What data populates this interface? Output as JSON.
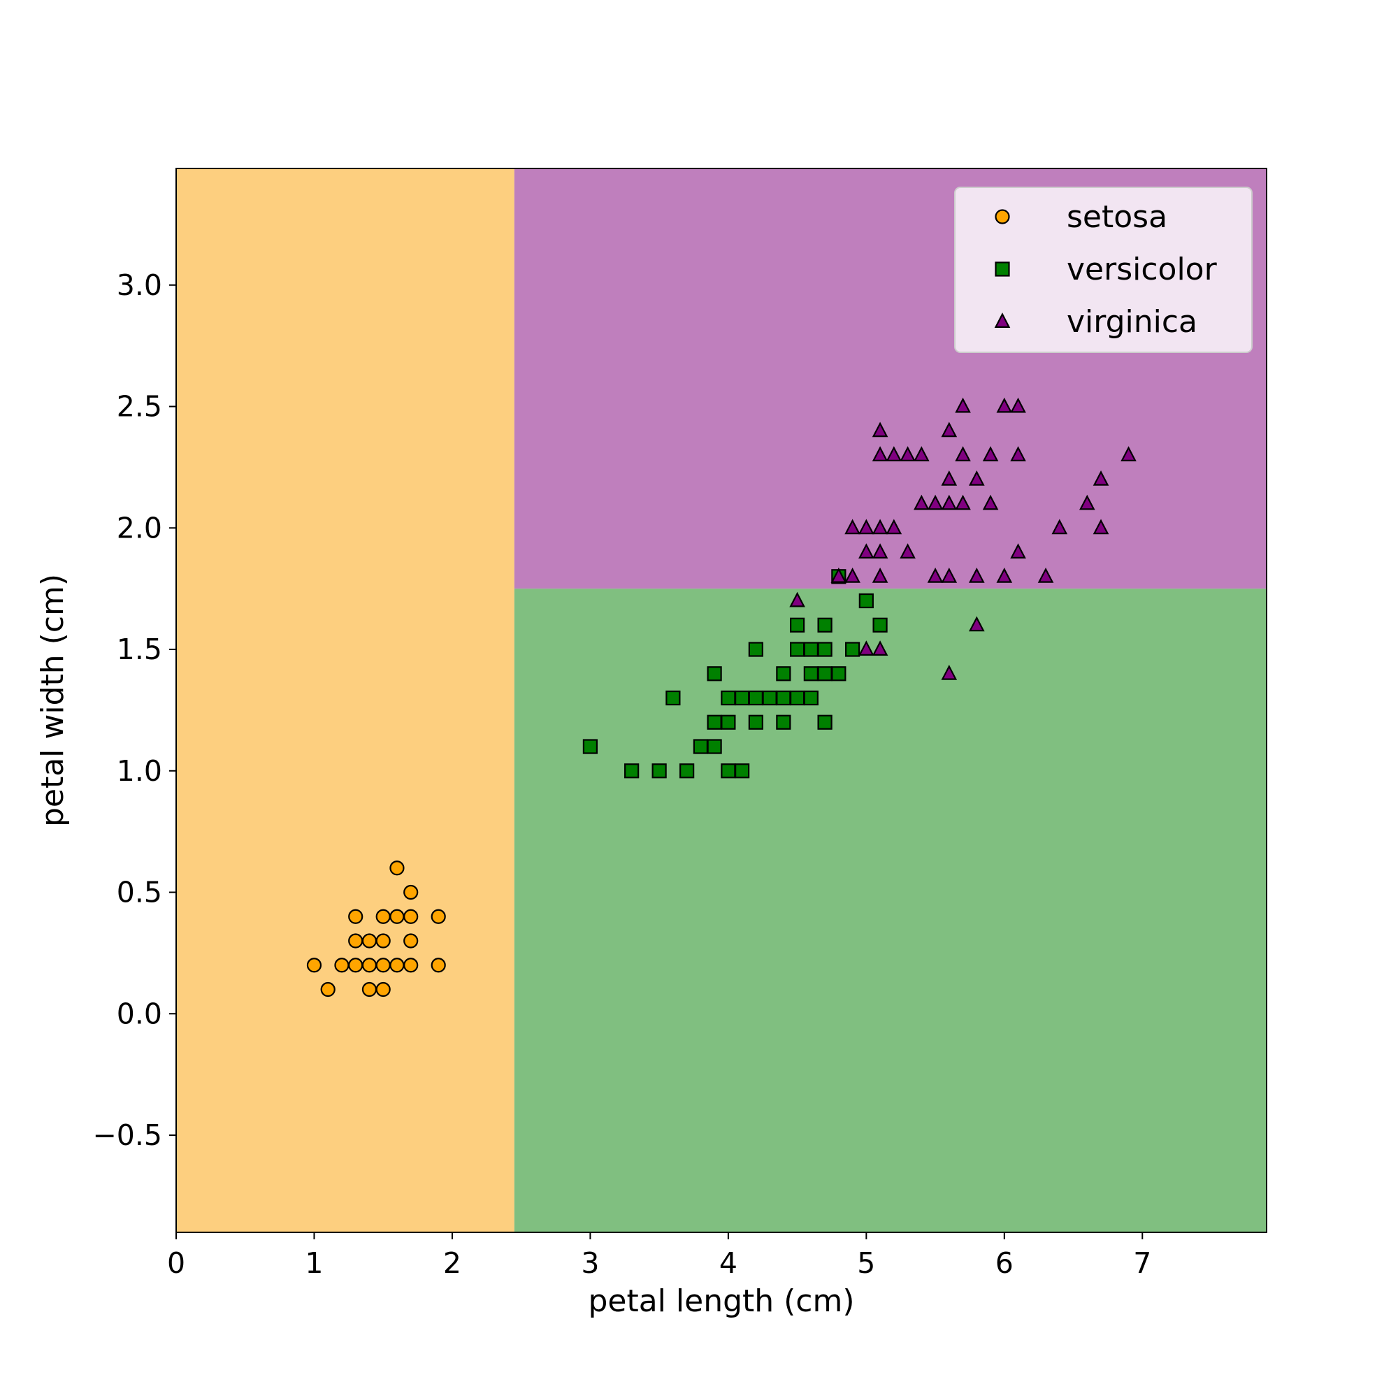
{
  "chart_data": {
    "type": "scatter",
    "title": "",
    "xlabel": "petal length (cm)",
    "ylabel": "petal width (cm)",
    "xlim": [
      0,
      7.9
    ],
    "ylim": [
      -0.9,
      3.48
    ],
    "xticks": [
      0,
      1,
      2,
      3,
      4,
      5,
      6,
      7
    ],
    "yticks": [
      -0.5,
      0.0,
      0.5,
      1.0,
      1.5,
      2.0,
      2.5,
      3.0
    ],
    "xtick_labels": [
      "0",
      "1",
      "2",
      "3",
      "4",
      "5",
      "6",
      "7"
    ],
    "ytick_labels": [
      "−0.5",
      "0.0",
      "0.5",
      "1.0",
      "1.5",
      "2.0",
      "2.5",
      "3.0"
    ],
    "grid": false,
    "legend_position": "top-right",
    "decision_regions": [
      {
        "class": "setosa",
        "x": [
          0,
          2.45
        ],
        "y": [
          -0.9,
          3.48
        ],
        "color": "#fdcf7f"
      },
      {
        "class": "virginica",
        "x": [
          2.45,
          7.9
        ],
        "y": [
          1.75,
          3.48
        ],
        "color": "#bf7fbd"
      },
      {
        "class": "versicolor",
        "x": [
          2.45,
          7.9
        ],
        "y": [
          -0.9,
          1.75
        ],
        "color": "#80bf80"
      }
    ],
    "series": [
      {
        "name": "setosa",
        "marker": "circle",
        "color": "#ffa500",
        "points": [
          [
            1.0,
            0.2
          ],
          [
            1.1,
            0.1
          ],
          [
            1.2,
            0.2
          ],
          [
            1.3,
            0.2
          ],
          [
            1.3,
            0.3
          ],
          [
            1.3,
            0.4
          ],
          [
            1.4,
            0.1
          ],
          [
            1.4,
            0.2
          ],
          [
            1.4,
            0.3
          ],
          [
            1.5,
            0.1
          ],
          [
            1.5,
            0.2
          ],
          [
            1.5,
            0.3
          ],
          [
            1.5,
            0.4
          ],
          [
            1.6,
            0.2
          ],
          [
            1.6,
            0.4
          ],
          [
            1.6,
            0.6
          ],
          [
            1.7,
            0.2
          ],
          [
            1.7,
            0.3
          ],
          [
            1.7,
            0.4
          ],
          [
            1.7,
            0.5
          ],
          [
            1.9,
            0.2
          ],
          [
            1.9,
            0.4
          ]
        ]
      },
      {
        "name": "versicolor",
        "marker": "square",
        "color": "#008000",
        "points": [
          [
            3.0,
            1.1
          ],
          [
            3.3,
            1.0
          ],
          [
            3.5,
            1.0
          ],
          [
            3.6,
            1.3
          ],
          [
            3.7,
            1.0
          ],
          [
            3.8,
            1.1
          ],
          [
            3.9,
            1.1
          ],
          [
            3.9,
            1.2
          ],
          [
            3.9,
            1.4
          ],
          [
            4.0,
            1.0
          ],
          [
            4.0,
            1.2
          ],
          [
            4.0,
            1.3
          ],
          [
            4.1,
            1.0
          ],
          [
            4.1,
            1.3
          ],
          [
            4.2,
            1.2
          ],
          [
            4.2,
            1.3
          ],
          [
            4.2,
            1.5
          ],
          [
            4.3,
            1.3
          ],
          [
            4.4,
            1.2
          ],
          [
            4.4,
            1.3
          ],
          [
            4.4,
            1.4
          ],
          [
            4.5,
            1.3
          ],
          [
            4.5,
            1.5
          ],
          [
            4.5,
            1.6
          ],
          [
            4.6,
            1.3
          ],
          [
            4.6,
            1.4
          ],
          [
            4.6,
            1.5
          ],
          [
            4.7,
            1.2
          ],
          [
            4.7,
            1.4
          ],
          [
            4.7,
            1.5
          ],
          [
            4.7,
            1.6
          ],
          [
            4.8,
            1.4
          ],
          [
            4.8,
            1.8
          ],
          [
            4.9,
            1.5
          ],
          [
            5.0,
            1.7
          ],
          [
            5.1,
            1.6
          ]
        ]
      },
      {
        "name": "virginica",
        "marker": "triangle",
        "color": "#800080",
        "points": [
          [
            4.5,
            1.7
          ],
          [
            4.8,
            1.8
          ],
          [
            4.9,
            1.8
          ],
          [
            4.9,
            2.0
          ],
          [
            5.0,
            1.5
          ],
          [
            5.0,
            1.9
          ],
          [
            5.0,
            2.0
          ],
          [
            5.1,
            1.5
          ],
          [
            5.1,
            1.8
          ],
          [
            5.1,
            1.9
          ],
          [
            5.1,
            2.0
          ],
          [
            5.1,
            2.3
          ],
          [
            5.1,
            2.4
          ],
          [
            5.2,
            2.0
          ],
          [
            5.2,
            2.3
          ],
          [
            5.3,
            1.9
          ],
          [
            5.3,
            2.3
          ],
          [
            5.4,
            2.1
          ],
          [
            5.4,
            2.3
          ],
          [
            5.5,
            1.8
          ],
          [
            5.5,
            2.1
          ],
          [
            5.6,
            1.4
          ],
          [
            5.6,
            1.8
          ],
          [
            5.6,
            2.1
          ],
          [
            5.6,
            2.2
          ],
          [
            5.6,
            2.4
          ],
          [
            5.7,
            2.1
          ],
          [
            5.7,
            2.3
          ],
          [
            5.7,
            2.5
          ],
          [
            5.8,
            1.6
          ],
          [
            5.8,
            1.8
          ],
          [
            5.8,
            2.2
          ],
          [
            5.9,
            2.1
          ],
          [
            5.9,
            2.3
          ],
          [
            6.0,
            1.8
          ],
          [
            6.0,
            2.5
          ],
          [
            6.1,
            1.9
          ],
          [
            6.1,
            2.3
          ],
          [
            6.1,
            2.5
          ],
          [
            6.3,
            1.8
          ],
          [
            6.4,
            2.0
          ],
          [
            6.6,
            2.1
          ],
          [
            6.7,
            2.0
          ],
          [
            6.7,
            2.2
          ],
          [
            6.9,
            2.3
          ]
        ]
      }
    ]
  }
}
